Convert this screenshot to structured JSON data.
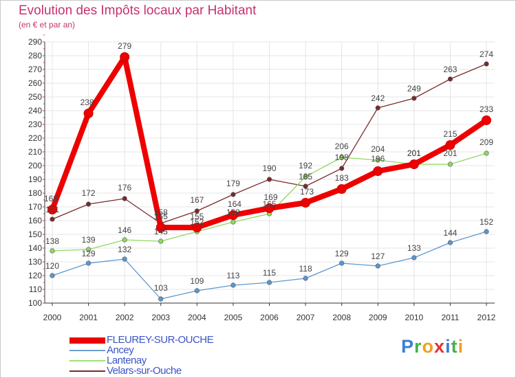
{
  "chart_data": {
    "type": "line",
    "title": "Evolution des Impôts locaux par Habitant",
    "subtitle": "(en € et par an)",
    "x": [
      "2000",
      "2001",
      "2002",
      "2003",
      "2004",
      "2005",
      "2006",
      "2007",
      "2008",
      "2009",
      "2010",
      "2011",
      "2012"
    ],
    "ylim": [
      100,
      290
    ],
    "yticks": [
      100,
      110,
      120,
      130,
      140,
      150,
      160,
      170,
      180,
      190,
      200,
      210,
      220,
      230,
      240,
      250,
      260,
      270,
      280,
      290
    ],
    "grid": true,
    "legend_position": "bottom-left",
    "series": [
      {
        "name": "FLEUREY-SUR-OUCHE",
        "color": "#ee0000",
        "values": [
          168,
          238,
          279,
          155,
          155,
          164,
          169,
          173,
          183,
          196,
          201,
          215,
          233
        ],
        "labels": [
          "168",
          "238",
          "279",
          "155",
          "155",
          "164",
          "169",
          "173",
          "183",
          "196",
          "201",
          "215",
          "233"
        ]
      },
      {
        "name": "Ancey",
        "color": "#5b97d0",
        "values": [
          120,
          129,
          132,
          103,
          109,
          113,
          115,
          118,
          129,
          127,
          133,
          144,
          152
        ],
        "labels": [
          "120",
          "129",
          "132",
          "103",
          "109",
          "113",
          "115",
          "118",
          "129",
          "127",
          "133",
          "144",
          "152"
        ]
      },
      {
        "name": "Lantenay",
        "color": "#8fd85f",
        "values": [
          138,
          139,
          146,
          145,
          152,
          159,
          165,
          192,
          206,
          204,
          201,
          201,
          209
        ],
        "labels": [
          "138",
          "139",
          "146",
          "145",
          "152",
          "159",
          "165",
          "192",
          "206",
          "204",
          "201",
          "201",
          "209"
        ]
      },
      {
        "name": "Velars-sur-Ouche",
        "color": "#7a2a2a",
        "values": [
          161,
          172,
          176,
          158,
          167,
          179,
          190,
          185,
          198,
          242,
          249,
          263,
          274
        ],
        "labels": [
          "161",
          "172",
          "176",
          "158",
          "167",
          "179",
          "190",
          "185",
          "198",
          "242",
          "249",
          "263",
          "274"
        ]
      }
    ]
  },
  "logo": {
    "text": "Proxiti",
    "letters": [
      {
        "ch": "P",
        "color": "#3a7fd8"
      },
      {
        "ch": "r",
        "color": "#46b04a"
      },
      {
        "ch": "o",
        "color": "#f0a020"
      },
      {
        "ch": "x",
        "color": "#e83030"
      },
      {
        "ch": "i",
        "color": "#3a7fd8"
      },
      {
        "ch": "t",
        "color": "#46b04a"
      },
      {
        "ch": "i",
        "color": "#f0a020"
      }
    ]
  }
}
